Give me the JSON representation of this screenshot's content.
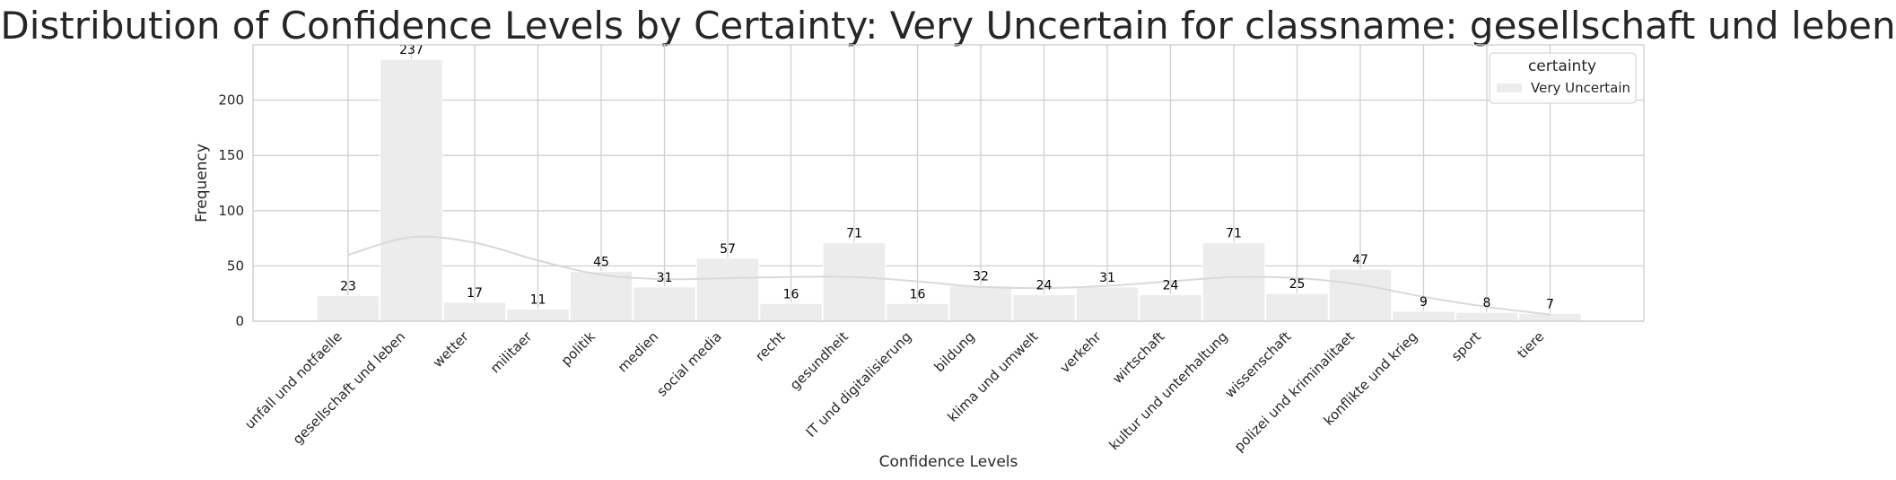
{
  "chart_data": {
    "type": "bar",
    "title": "Distribution of Confidence Levels by Certainty: Very Uncertain for classname: gesellschaft und leben",
    "xlabel": "Confidence Levels",
    "ylabel": "Frequency",
    "categories": [
      "unfall und notfaelle",
      "gesellschaft und leben",
      "wetter",
      "militaer",
      "politik",
      "medien",
      "social media",
      "recht",
      "gesundheit",
      "IT und digitalisierung",
      "bildung",
      "klima und umwelt",
      "verkehr",
      "wirtschaft",
      "kultur und unterhaltung",
      "wissenschaft",
      "polizei und kriminalitaet",
      "konflikte und krieg",
      "sport",
      "tiere"
    ],
    "series": [
      {
        "name": "Very Uncertain",
        "values": [
          23,
          237,
          17,
          11,
          45,
          31,
          57,
          16,
          71,
          16,
          32,
          24,
          31,
          24,
          71,
          25,
          47,
          9,
          8,
          7
        ]
      }
    ],
    "kde_curve": [
      60,
      76,
      71,
      55,
      42,
      38,
      39,
      40,
      40,
      36,
      31,
      30,
      32,
      36,
      40,
      39,
      33,
      22,
      13,
      6
    ],
    "yticks": [
      0,
      50,
      100,
      150,
      200
    ],
    "ylim": [
      0,
      250
    ],
    "grid": true,
    "legend": {
      "title": "certainty",
      "position": "top-right"
    },
    "colors": {
      "bar": "#ececec",
      "bar_edge": "#ffffff",
      "kde": "#d9d9d9",
      "grid": "#d0d0d0",
      "spine": "#cccccc"
    }
  }
}
